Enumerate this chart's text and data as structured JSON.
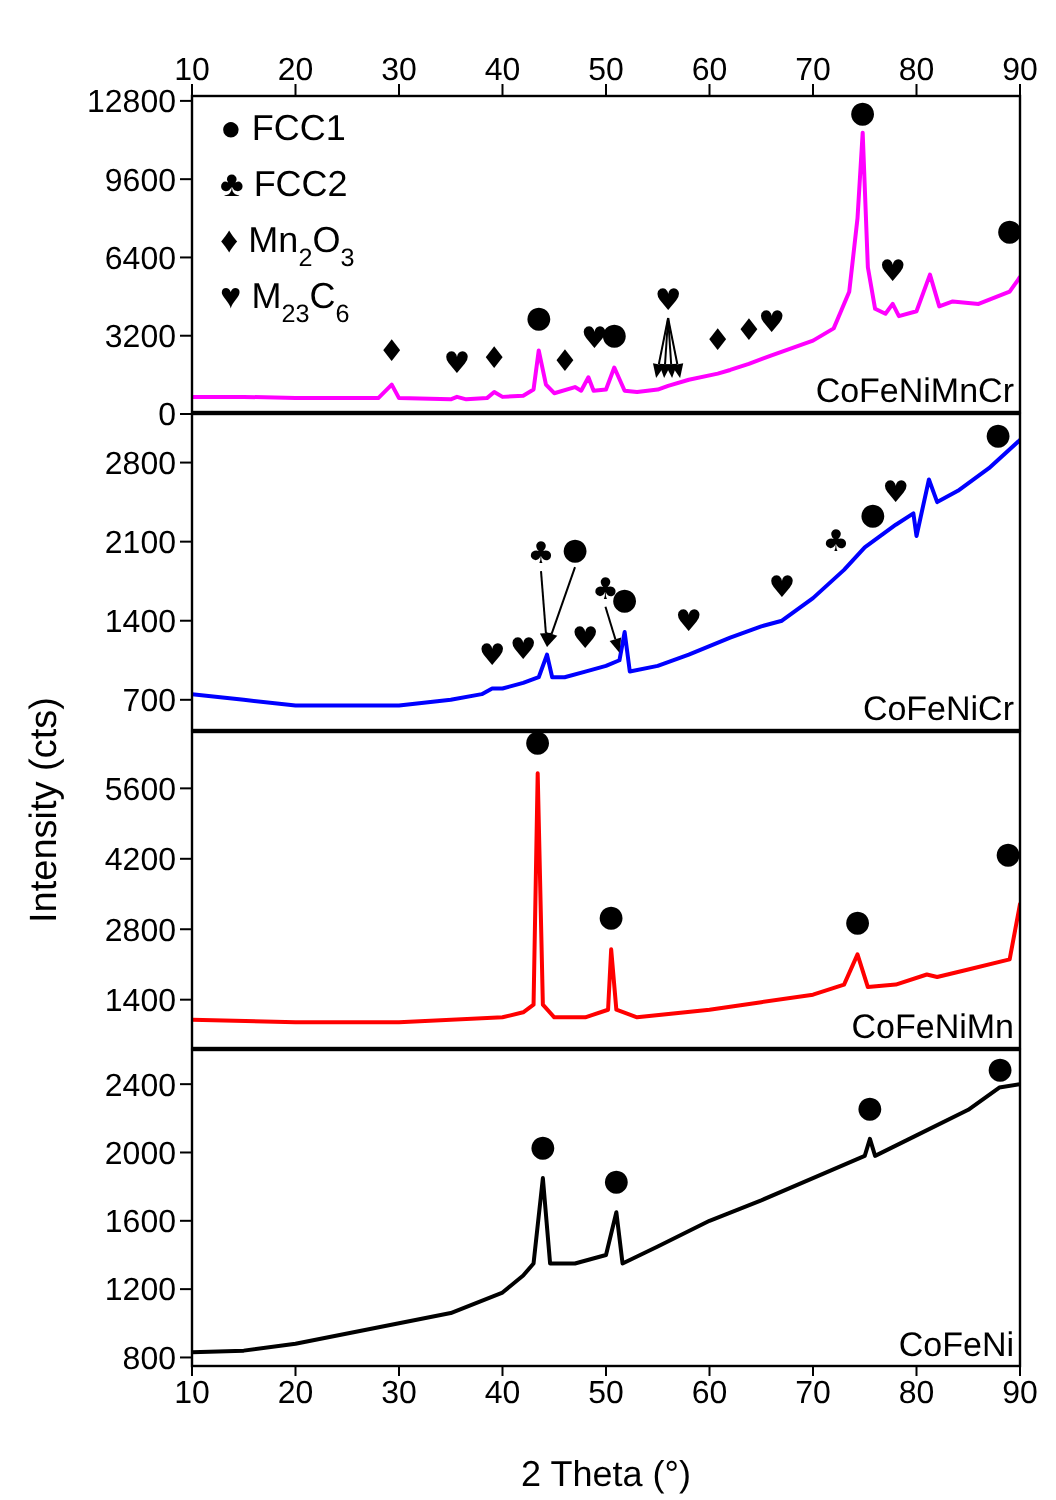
{
  "chart_data": [
    {
      "type": "line",
      "color": "#ff00ff",
      "xlim": [
        10,
        90
      ],
      "xticks": [
        10,
        20,
        30,
        40,
        50,
        60,
        70,
        80,
        90
      ],
      "x2lim": [
        10,
        90
      ],
      "x2ticks": [
        10,
        20,
        30,
        40,
        50,
        60,
        70,
        80,
        90
      ],
      "tick_labels": "y",
      "ylim": [
        0,
        13000
      ],
      "yticks": [
        0,
        3200,
        6400,
        9600,
        12800
      ],
      "x": [
        10,
        15,
        20,
        25,
        28,
        29.3,
        30,
        35,
        35.6,
        36.5,
        38.5,
        39.2,
        40,
        42,
        43,
        43.5,
        44.2,
        45,
        47,
        47.6,
        48.3,
        48.8,
        50,
        50.8,
        51.8,
        53,
        55,
        56,
        58,
        60.8,
        62,
        63.8,
        66,
        70,
        72,
        73.5,
        74.3,
        74.8,
        75.3,
        76,
        77,
        77.7,
        78.3,
        80,
        81.3,
        82.2,
        83.5,
        86,
        89,
        90
      ],
      "values": [
        700,
        700,
        650,
        650,
        650,
        1200,
        650,
        600,
        700,
        600,
        650,
        900,
        700,
        750,
        1000,
        2600,
        1200,
        850,
        1100,
        950,
        1500,
        950,
        1000,
        1900,
        950,
        900,
        1000,
        1150,
        1400,
        1650,
        1800,
        2050,
        2400,
        3000,
        3500,
        5000,
        8000,
        11500,
        6000,
        4300,
        4100,
        4500,
        4000,
        4200,
        5700,
        4400,
        4600,
        4500,
        5000,
        5600
      ],
      "annotations": [
        "● FCC1",
        "♣ FCC2",
        "♦ Mn$_{2}$O$_{3}$",
        "♥ M$_{23}$C$_{6}$",
        "CoFeNiMnCr",
        {
          "text": "●",
          "x": 74.8,
          "y": 11500
        },
        {
          "text": "●",
          "x": 89,
          "y": 5000
        },
        {
          "text": "●",
          "x": 43.5,
          "y": 2600
        },
        {
          "text": "●",
          "x": 50.8,
          "y": 1900
        },
        {
          "text": "♦",
          "x": 29.3,
          "y": 1200
        },
        {
          "text": "♦",
          "x": 39.2,
          "y": 900
        },
        {
          "text": "♦",
          "x": 47,
          "y": 1100
        },
        {
          "text": "♦",
          "x": 60.8,
          "y": 1650
        },
        {
          "text": "♦",
          "x": 63.8,
          "y": 2050
        },
        {
          "text": "♥",
          "x": 35.6,
          "y": 700
        },
        {
          "text": "♥",
          "x": 48.3,
          "y": 1500
        },
        {
          "text": "♥",
          "x": 56,
          "y": 1150
        },
        {
          "text": "♥",
          "x": 66,
          "y": 2400
        },
        {
          "text": "♥",
          "x": 77.7,
          "y": 4500
        }
      ]
    },
    {
      "type": "line",
      "color": "#0000ff",
      "xlim": [
        10,
        90
      ],
      "xticks": [
        10,
        20,
        30,
        40,
        50,
        60,
        70,
        80,
        90
      ],
      "tick_labels": "y",
      "ylim": [
        415,
        3230
      ],
      "yticks": [
        700,
        1400,
        2100,
        2800
      ],
      "ylabel": "Intensity (cts)",
      "x": [
        10,
        15,
        20,
        25,
        30,
        35,
        38,
        39,
        40,
        42,
        43.5,
        44.3,
        44.8,
        46,
        48,
        50,
        51.3,
        51.8,
        52.3,
        55,
        58,
        62,
        65,
        67,
        70,
        73,
        75,
        78,
        79.7,
        80,
        81.2,
        82,
        84,
        87,
        90
      ],
      "values": [
        750,
        700,
        650,
        650,
        650,
        700,
        750,
        800,
        800,
        850,
        900,
        1100,
        900,
        900,
        950,
        1000,
        1050,
        1300,
        950,
        1000,
        1100,
        1250,
        1350,
        1400,
        1600,
        1850,
        2050,
        2250,
        2350,
        2150,
        2650,
        2450,
        2550,
        2750,
        3000
      ],
      "annotations": [
        "CoFeNiCr",
        {
          "text": "●",
          "x": 90,
          "y": 3000
        },
        {
          "text": "♥",
          "x": 78,
          "y": 2250
        },
        {
          "text": "♣",
          "x": 73,
          "y": 1850
        },
        {
          "text": "●",
          "x": 75,
          "y": 2050
        },
        {
          "text": "♥",
          "x": 67,
          "y": 1400
        },
        {
          "text": "♥",
          "x": 58,
          "y": 1100
        },
        {
          "text": "♥",
          "x": 48,
          "y": 950
        },
        {
          "text": "♥",
          "x": 39,
          "y": 800
        },
        {
          "text": "♥",
          "x": 42,
          "y": 850
        },
        {
          "text": "♣",
          "x": 44.3,
          "y": 1100
        },
        {
          "text": "●",
          "x": 44.3,
          "y": 1100
        },
        {
          "text": "♣",
          "x": 51.3,
          "y": 1050
        },
        {
          "text": "●",
          "x": 51.8,
          "y": 1300
        }
      ]
    },
    {
      "type": "line",
      "color": "#ff0000",
      "xlim": [
        10,
        90
      ],
      "xticks": [
        10,
        20,
        30,
        40,
        50,
        60,
        70,
        80,
        90
      ],
      "tick_labels": "y",
      "ylim": [
        400,
        6720
      ],
      "yticks": [
        1400,
        2800,
        4200,
        5600
      ],
      "x": [
        10,
        20,
        30,
        40,
        42,
        43,
        43.4,
        43.9,
        45,
        48,
        50.2,
        50.5,
        51,
        53,
        60,
        65,
        70,
        73,
        74.3,
        75.3,
        78,
        81,
        82,
        85,
        89,
        90
      ],
      "values": [
        1000,
        950,
        950,
        1050,
        1150,
        1300,
        5900,
        1300,
        1050,
        1050,
        1200,
        2400,
        1200,
        1050,
        1200,
        1350,
        1500,
        1700,
        2300,
        1650,
        1700,
        1900,
        1850,
        2000,
        2200,
        3300
      ],
      "annotations": [
        "CoFeNiMn",
        {
          "text": "●",
          "x": 43.4,
          "y": 5900
        },
        {
          "text": "●",
          "x": 50.5,
          "y": 2400
        },
        {
          "text": "●",
          "x": 74.3,
          "y": 2300
        },
        {
          "text": "●",
          "x": 90,
          "y": 3300
        }
      ]
    },
    {
      "type": "line",
      "color": "#000000",
      "xlim": [
        10,
        90
      ],
      "xticks": [
        10,
        20,
        30,
        40,
        50,
        60,
        70,
        80,
        90
      ],
      "xlabel": "2 Theta (°)",
      "ylim": [
        750,
        2600
      ],
      "yticks": [
        800,
        1200,
        1600,
        2000,
        2400
      ],
      "x": [
        10,
        15,
        20,
        25,
        30,
        35,
        40,
        42,
        43,
        43.9,
        44.6,
        47,
        50,
        51,
        51.6,
        55,
        60,
        65,
        70,
        75,
        75.5,
        76,
        80,
        85,
        88,
        90
      ],
      "values": [
        830,
        840,
        880,
        940,
        1000,
        1060,
        1180,
        1280,
        1350,
        1850,
        1350,
        1350,
        1400,
        1650,
        1350,
        1450,
        1600,
        1720,
        1850,
        1980,
        2080,
        1980,
        2100,
        2250,
        2380,
        2400
      ],
      "annotations": [
        "CoFeNi",
        {
          "text": "●",
          "x": 43.9,
          "y": 1850
        },
        {
          "text": "●",
          "x": 51,
          "y": 1650
        },
        {
          "text": "●",
          "x": 75.5,
          "y": 2080
        },
        {
          "text": "●",
          "x": 90,
          "y": 2400
        }
      ]
    }
  ]
}
